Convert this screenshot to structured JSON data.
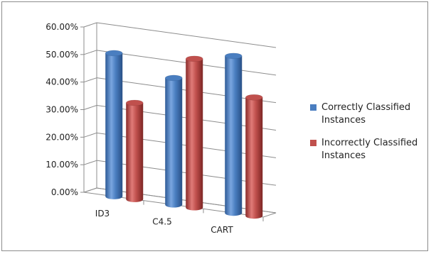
{
  "chart_data": {
    "type": "bar",
    "categories": [
      "ID3",
      "C4.5",
      "CART"
    ],
    "series": [
      {
        "name": "Correctly Classified Instances",
        "values": [
          52.0,
          46.0,
          57.0
        ],
        "color": "#4a7ec0"
      },
      {
        "name": "Incorrectly Classified Instances",
        "values": [
          35.0,
          54.0,
          43.0
        ],
        "color": "#c0504d"
      }
    ],
    "y_ticks": [
      "0.00%",
      "10.00%",
      "20.00%",
      "30.00%",
      "40.00%",
      "50.00%",
      "60.00%"
    ],
    "ylim": [
      0,
      60
    ],
    "grid": true,
    "legend_position": "right"
  }
}
